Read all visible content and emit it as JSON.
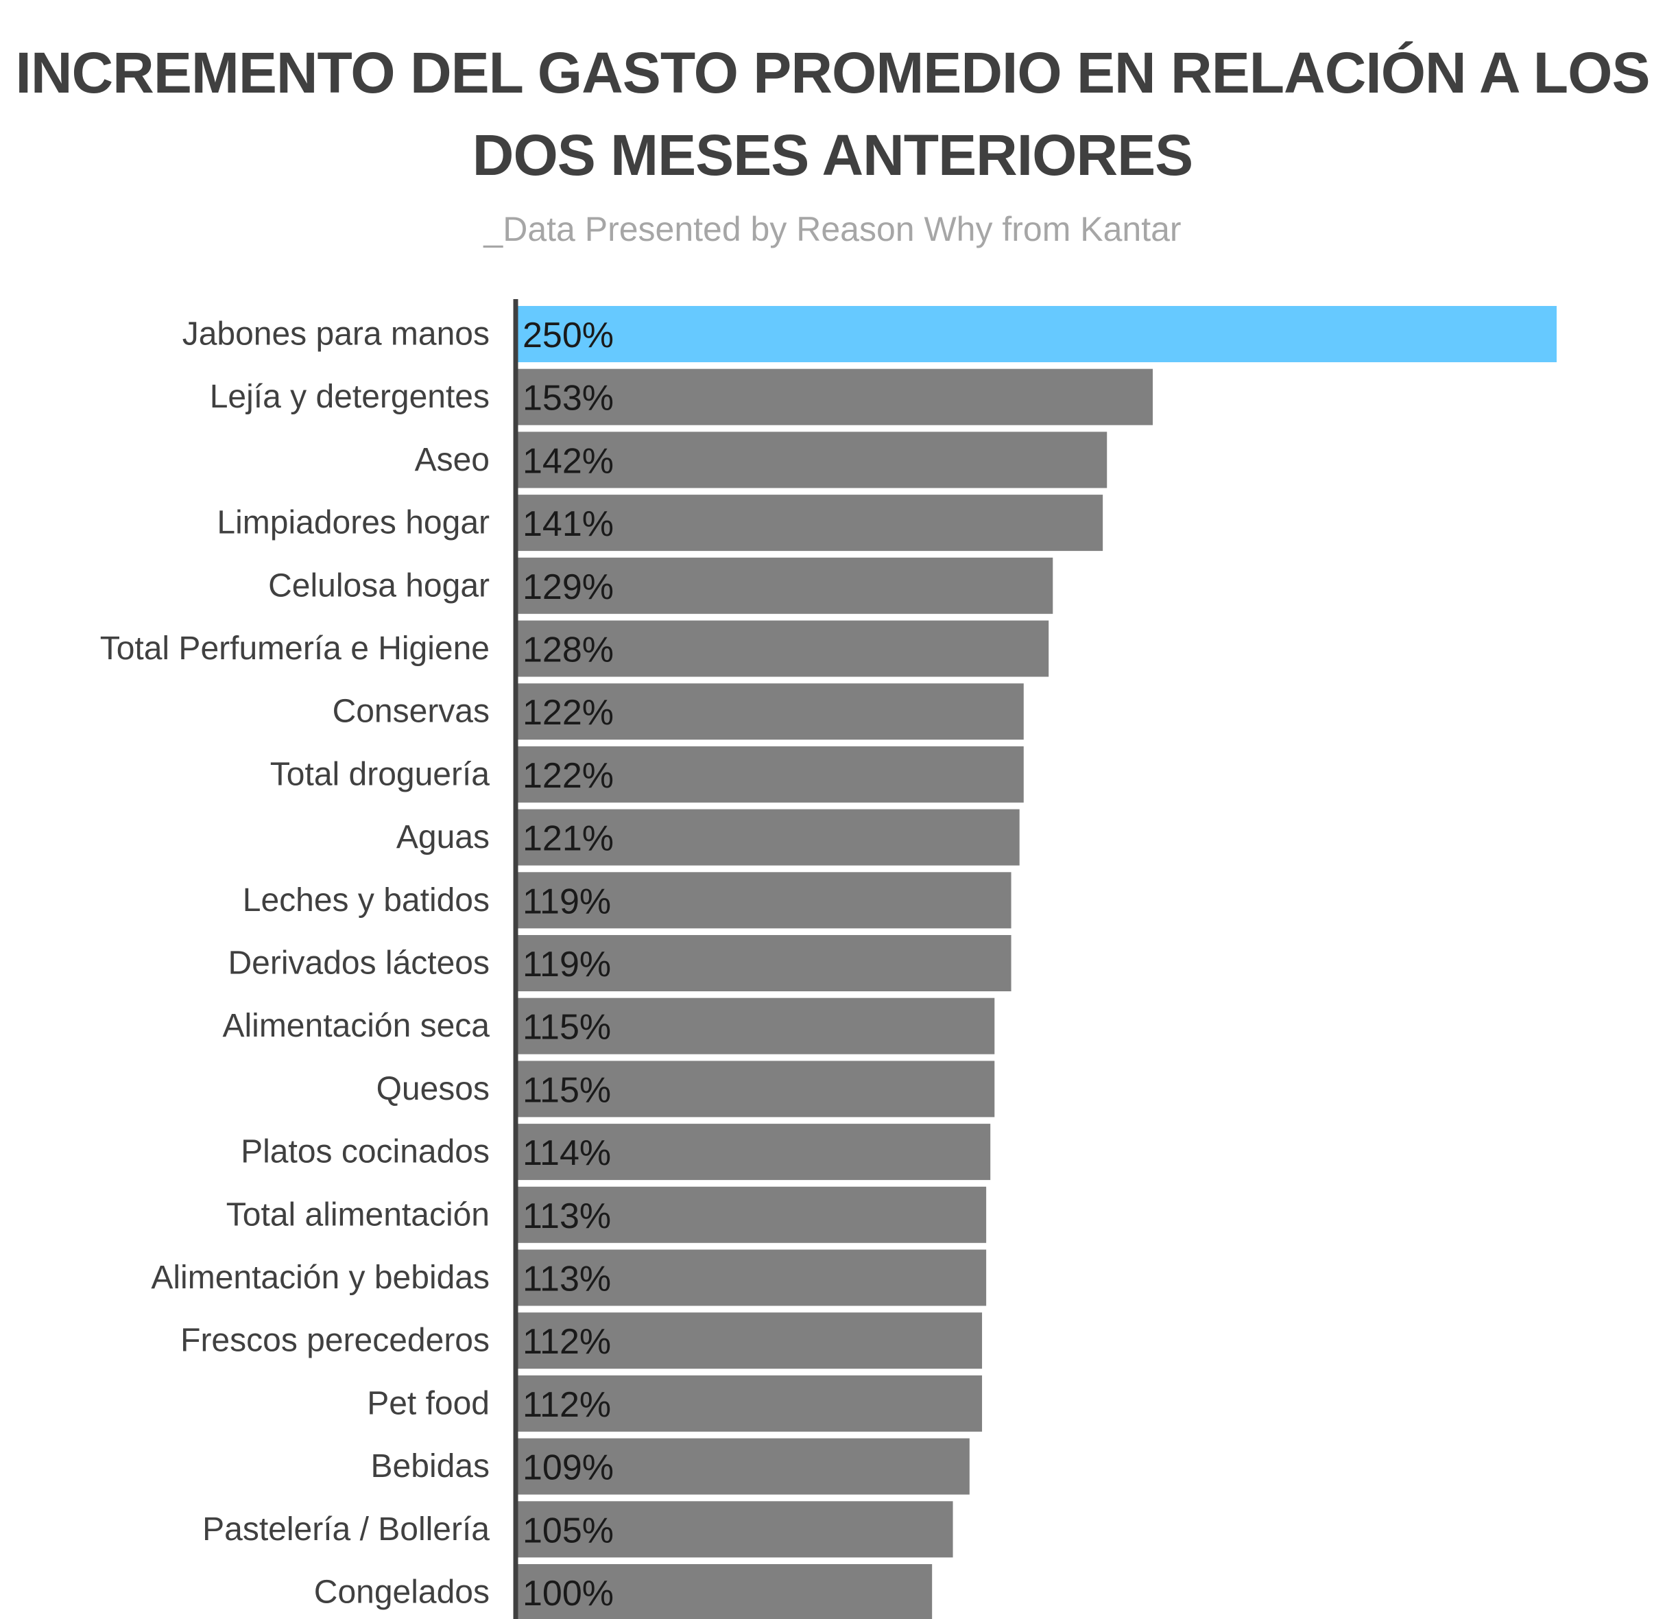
{
  "chart_data": {
    "type": "bar",
    "orientation": "horizontal",
    "title_lines": [
      "INCREMENTO DEL GASTO PROMEDIO EN RELACIÓN A LOS",
      "DOS MESES ANTERIORES"
    ],
    "subtitle": "_Data Presented by Reason Why from Kantar",
    "categories": [
      "Jabones para manos",
      "Lejía y detergentes",
      "Aseo",
      "Limpiadores hogar",
      "Celulosa hogar",
      "Total Perfumería e Higiene",
      "Conservas",
      "Total droguería",
      "Aguas",
      "Leches y batidos",
      "Derivados lácteos",
      "Alimentación seca",
      "Quesos",
      "Platos cocinados",
      "Total alimentación",
      "Alimentación y bebidas",
      "Frescos perecederos",
      "Pet food",
      "Bebidas",
      "Pastelería / Bollería",
      "Congelados"
    ],
    "values": [
      250,
      153,
      142,
      141,
      129,
      128,
      122,
      122,
      121,
      119,
      119,
      115,
      115,
      114,
      113,
      113,
      112,
      112,
      109,
      105,
      100
    ],
    "value_labels": [
      "250%",
      "153%",
      "142%",
      "141%",
      "129%",
      "128%",
      "122%",
      "122%",
      "121%",
      "119%",
      "119%",
      "115%",
      "115%",
      "114%",
      "113%",
      "113%",
      "112%",
      "112%",
      "109%",
      "105%",
      "100%"
    ],
    "unit": "%",
    "xlim": [
      0,
      250
    ],
    "grid": false,
    "legend": "none",
    "colors": {
      "highlight": "#66c9ff",
      "bar": "#808080",
      "axis": "#404040"
    },
    "highlight_index": 0
  }
}
